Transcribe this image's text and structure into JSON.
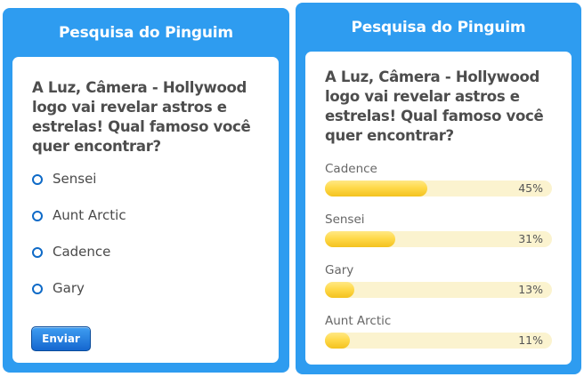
{
  "poll": {
    "title": "Pesquisa do Pinguim",
    "question": "A Luz, Câmera - Hollywood logo vai revelar astros e estrelas! Qual famoso você quer encontrar?",
    "options": [
      "Sensei",
      "Aunt Arctic",
      "Cadence",
      "Gary"
    ],
    "submit_label": "Enviar"
  },
  "results": {
    "title": "Pesquisa do Pinguim",
    "question": "A Luz, Câmera - Hollywood logo vai revelar astros e estrelas! Qual famoso você quer encontrar?",
    "items": [
      {
        "label": "Cadence",
        "percent": 45,
        "percent_text": "45%"
      },
      {
        "label": "Sensei",
        "percent": 31,
        "percent_text": "31%"
      },
      {
        "label": "Gary",
        "percent": 13,
        "percent_text": "13%"
      },
      {
        "label": "Aunt Arctic",
        "percent": 11,
        "percent_text": "11%"
      }
    ]
  },
  "colors": {
    "panel_blue": "#2e9cf0",
    "radio_blue": "#0e6ac7",
    "bar_yellow": "#ffd94a",
    "bar_track": "#fbf3cf"
  }
}
